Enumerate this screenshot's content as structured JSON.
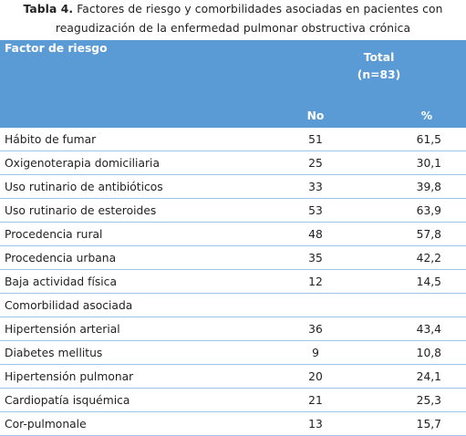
{
  "caption": {
    "label": "Tabla 4.",
    "text": "Factores de riesgo y comorbilidades asociadas en pacientes con reagudización de la enfermedad pulmonar obstructiva crónica"
  },
  "header": {
    "factor": "Factor de riesgo",
    "total": "Total",
    "n": "(n=83)",
    "no": "No",
    "pct": "%"
  },
  "rows": [
    [
      "Hábito de fumar",
      "51",
      "61,5"
    ],
    [
      "Oxigenoterapia domiciliaria",
      "25",
      "30,1"
    ],
    [
      "Uso rutinario de antibióticos",
      "33",
      "39,8"
    ],
    [
      "Uso rutinario de esteroides",
      "53",
      "63,9"
    ],
    [
      "Procedencia rural",
      "48",
      "57,8"
    ],
    [
      "Procedencia urbana",
      "35",
      "42,2"
    ],
    [
      "Baja actividad física",
      "12",
      "14,5"
    ],
    [
      "Comorbilidad asociada"
    ],
    [
      "Hipertensión arterial",
      "36",
      "43,4"
    ],
    [
      "Diabetes mellitus",
      "9",
      "10,8"
    ],
    [
      "Hipertensión pulmonar",
      "20",
      "24,1"
    ],
    [
      "Cardiopatía isquémica",
      "21",
      "25,3"
    ],
    [
      "Cor-pulmonale",
      "13",
      "15,7"
    ]
  ]
}
